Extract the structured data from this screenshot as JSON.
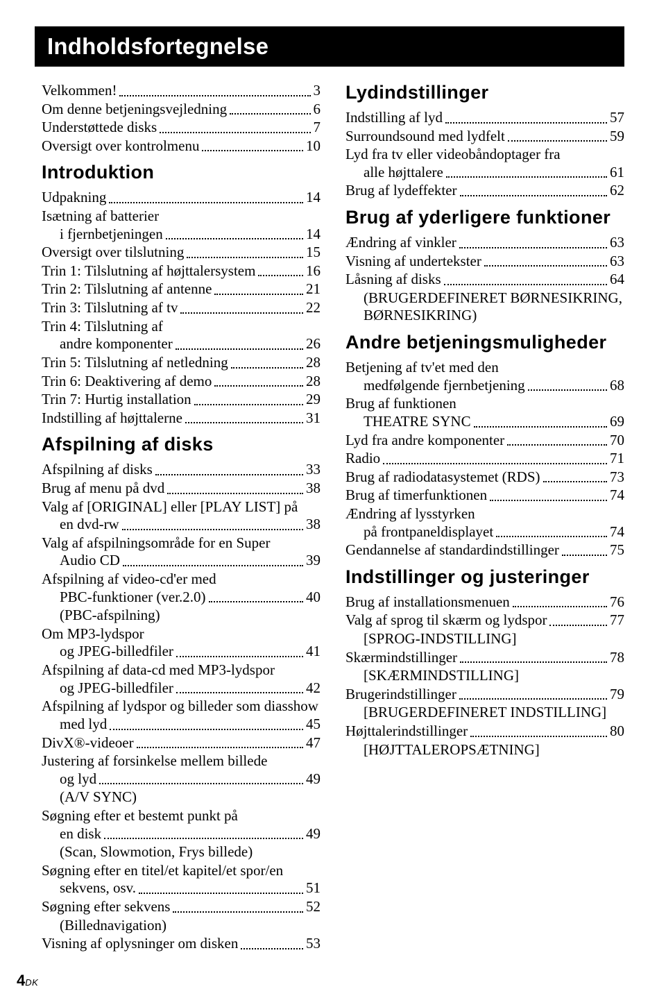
{
  "chapterTitle": "Indholdsfortegnelse",
  "pageNumber": "4",
  "pageNumberSuffix": "DK",
  "toc": [
    {
      "t": "entry",
      "label": "Velkommen!",
      "page": "3"
    },
    {
      "t": "entry",
      "label": "Om denne betjeningsvejledning",
      "page": "6"
    },
    {
      "t": "entry",
      "label": "Understøttede disks",
      "page": "7"
    },
    {
      "t": "entry",
      "label": "Oversigt over kontrolmenu",
      "page": "10"
    },
    {
      "t": "head",
      "label": "Introduktion"
    },
    {
      "t": "entry",
      "label": "Udpakning",
      "page": "14"
    },
    {
      "t": "entry",
      "label": "Isætning af batterier i fjernbetjeningen",
      "page": "14",
      "indentCont": 1
    },
    {
      "t": "entry",
      "label": "Oversigt over tilslutning",
      "page": "15"
    },
    {
      "t": "entry",
      "label": "Trin 1: Tilslutning af højttalersystem",
      "page": "16"
    },
    {
      "t": "entry",
      "label": "Trin 2: Tilslutning af antenne",
      "page": "21"
    },
    {
      "t": "entry",
      "label": "Trin 3: Tilslutning af tv",
      "page": "22"
    },
    {
      "t": "entry",
      "label": "Trin 4: Tilslutning af andre komponenter",
      "page": "26",
      "indentCont": 1
    },
    {
      "t": "entry",
      "label": "Trin 5: Tilslutning af netledning",
      "page": "28"
    },
    {
      "t": "entry",
      "label": "Trin 6: Deaktivering af demo",
      "page": "28"
    },
    {
      "t": "entry",
      "label": "Trin 7: Hurtig installation",
      "page": "29"
    },
    {
      "t": "entry",
      "label": "Indstilling af højttalerne",
      "page": "31"
    },
    {
      "t": "head",
      "label": "Afspilning af disks"
    },
    {
      "t": "entry",
      "label": "Afspilning af disks",
      "page": "33"
    },
    {
      "t": "entry",
      "label": "Brug af menu på dvd",
      "page": "38"
    },
    {
      "t": "entry",
      "label": "Valg af [ORIGINAL] eller [PLAY LIST] på en dvd-rw",
      "page": "38",
      "indentCont": 1
    },
    {
      "t": "entry",
      "label": "Valg af afspilningsområde for en Super Audio CD",
      "page": "39",
      "indentCont": 1
    },
    {
      "t": "entry",
      "label": "Afspilning af video-cd'er med PBC-funktioner (ver.2.0)",
      "page": "40",
      "indentCont": 1
    },
    {
      "t": "note",
      "label": "(PBC-afspilning)",
      "indent": 1
    },
    {
      "t": "entry",
      "label": "Om MP3-lydspor og \nJPEG-billedfiler",
      "page": "41",
      "indentCont": 1
    },
    {
      "t": "entry",
      "label": "Afspilning af data-cd med MP3-lydspor og JPEG-billedfiler",
      "page": "42",
      "indentCont": 1
    },
    {
      "t": "entry",
      "label": "Afspilning af lydspor og billeder som diasshow med lyd",
      "page": "45",
      "indentCont": 1
    },
    {
      "t": "entry",
      "label": "DivX®-videoer",
      "page": "47"
    },
    {
      "t": "entry",
      "label": "Justering af forsinkelse mellem billede og lyd",
      "page": "49",
      "indentCont": 1
    },
    {
      "t": "note",
      "label": "(A/V SYNC)",
      "indent": 1
    },
    {
      "t": "entry",
      "label": "Søgning efter et bestemt punkt på en disk",
      "page": "49",
      "indentCont": 1
    },
    {
      "t": "note",
      "label": "(Scan, Slowmotion, Frys billede)",
      "indent": 1
    },
    {
      "t": "entry",
      "label": "Søgning efter en titel/et kapitel/et spor/en sekvens, osv.",
      "page": "51",
      "indentCont": 1
    },
    {
      "t": "entry",
      "label": "Søgning efter sekvens",
      "page": "52"
    },
    {
      "t": "note",
      "label": "(Billednavigation)",
      "indent": 1
    },
    {
      "t": "entry",
      "label": "Visning af oplysninger om disken",
      "page": "53"
    },
    {
      "t": "head",
      "label": "Lydindstillinger"
    },
    {
      "t": "entry",
      "label": "Indstilling af lyd",
      "page": "57"
    },
    {
      "t": "entry",
      "label": "Surroundsound med lydfelt",
      "page": "59"
    },
    {
      "t": "entry",
      "label": "Lyd fra tv eller videobåndoptager fra alle højttalere",
      "page": "61",
      "indentCont": 1
    },
    {
      "t": "entry",
      "label": "Brug af lydeffekter",
      "page": "62"
    },
    {
      "t": "head",
      "label": "Brug af yderligere funktioner"
    },
    {
      "t": "entry",
      "label": "Ændring af vinkler",
      "page": "63"
    },
    {
      "t": "entry",
      "label": "Visning af undertekster",
      "page": "63"
    },
    {
      "t": "entry",
      "label": "Låsning af disks",
      "page": "64"
    },
    {
      "t": "note",
      "label": "(BRUGERDEFINERET BØRNESIKRING, BØRNESIKRING)",
      "indent": 1
    },
    {
      "t": "head",
      "label": "Andre betjeningsmuligheder"
    },
    {
      "t": "entry",
      "label": "Betjening af tv'et med den medfølgende fjernbetjening",
      "page": "68",
      "indentCont": 1
    },
    {
      "t": "entry",
      "label": "Brug af funktionen THEATRE SYNC",
      "page": "69",
      "indentCont": 1
    },
    {
      "t": "entry",
      "label": "Lyd fra andre komponenter",
      "page": "70"
    },
    {
      "t": "entry",
      "label": "Radio",
      "page": "71"
    },
    {
      "t": "entry",
      "label": "Brug af radiodatasystemet (RDS)",
      "page": "73"
    },
    {
      "t": "entry",
      "label": "Brug af timerfunktionen",
      "page": "74"
    },
    {
      "t": "entry",
      "label": "Ændring af lysstyrken på frontpaneldisplayet",
      "page": "74",
      "indentCont": 1
    },
    {
      "t": "entry",
      "label": "Gendannelse af standardindstillinger",
      "page": "75"
    },
    {
      "t": "head",
      "label": "Indstillinger og justeringer"
    },
    {
      "t": "entry",
      "label": "Brug af installationsmenuen",
      "page": "76"
    },
    {
      "t": "entry",
      "label": "Valg af sprog til skærm og lydspor",
      "page": "77"
    },
    {
      "t": "note",
      "label": "[SPROG-INDSTILLING]",
      "indent": 1
    },
    {
      "t": "entry",
      "label": "Skærmindstillinger",
      "page": "78"
    },
    {
      "t": "note",
      "label": "[SKÆRMINDSTILLING]",
      "indent": 1
    },
    {
      "t": "entry",
      "label": "Brugerindstillinger",
      "page": "79"
    },
    {
      "t": "note",
      "label": "[BRUGERDEFINERET INDSTILLING]",
      "indent": 1
    },
    {
      "t": "entry",
      "label": "Højttalerindstillinger",
      "page": "80"
    },
    {
      "t": "note",
      "label": "[HØJTTALEROPSÆTNING]",
      "indent": 1
    }
  ]
}
